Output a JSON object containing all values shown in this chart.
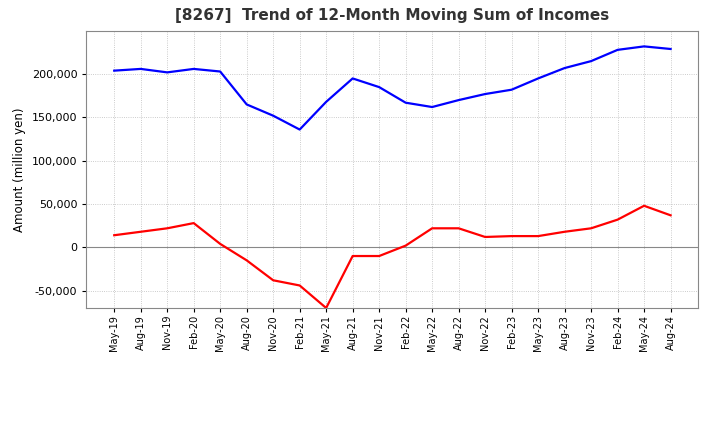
{
  "title": "[8267]  Trend of 12-Month Moving Sum of Incomes",
  "ylabel": "Amount (million yen)",
  "line1_color": "#0000FF",
  "line2_color": "#FF0000",
  "ylim": [
    -70000,
    250000
  ],
  "yticks": [
    -50000,
    0,
    50000,
    100000,
    150000,
    200000
  ],
  "x_labels": [
    "May-19",
    "Aug-19",
    "Nov-19",
    "Feb-20",
    "May-20",
    "Aug-20",
    "Nov-20",
    "Feb-21",
    "May-21",
    "Aug-21",
    "Nov-21",
    "Feb-22",
    "May-22",
    "Aug-22",
    "Nov-22",
    "Feb-23",
    "May-23",
    "Aug-23",
    "Nov-23",
    "Feb-24",
    "May-24",
    "Aug-24"
  ],
  "ordinary_income": [
    204000,
    206000,
    202000,
    206000,
    203000,
    165000,
    152000,
    136000,
    168000,
    195000,
    185000,
    167000,
    162000,
    170000,
    177000,
    182000,
    195000,
    207000,
    215000,
    228000,
    232000,
    229000
  ],
  "net_income": [
    14000,
    18000,
    22000,
    28000,
    4000,
    -15000,
    -38000,
    -44000,
    -70000,
    -10000,
    -10000,
    2000,
    22000,
    22000,
    12000,
    13000,
    13000,
    18000,
    22000,
    32000,
    48000,
    37000
  ],
  "background_color": "#ffffff",
  "grid_color": "#bbbbbb",
  "box_color": "#888888"
}
